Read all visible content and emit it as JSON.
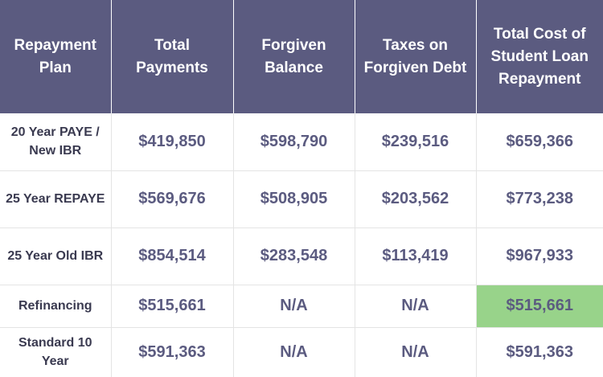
{
  "table": {
    "headers": [
      "Repayment Plan",
      "Total Payments",
      "Forgiven Balance",
      "Taxes on Forgiven Debt",
      "Total Cost of Student Loan Repayment"
    ],
    "rows": [
      {
        "plan": "20 Year PAYE / New IBR",
        "total_payments": "$419,850",
        "forgiven_balance": "$598,790",
        "taxes": "$239,516",
        "total_cost": "$659,366"
      },
      {
        "plan": "25 Year REPAYE",
        "total_payments": "$569,676",
        "forgiven_balance": "$508,905",
        "taxes": "$203,562",
        "total_cost": "$773,238"
      },
      {
        "plan": "25 Year Old IBR",
        "total_payments": "$854,514",
        "forgiven_balance": "$283,548",
        "taxes": "$113,419",
        "total_cost": "$967,933"
      },
      {
        "plan": "Refinancing",
        "total_payments": "$515,661",
        "forgiven_balance": "N/A",
        "taxes": "N/A",
        "total_cost": "$515,661"
      },
      {
        "plan": "Standard 10 Year",
        "total_payments": "$591,363",
        "forgiven_balance": "N/A",
        "taxes": "N/A",
        "total_cost": "$591,363"
      }
    ],
    "highlight_color": "#98d38a",
    "header_color": "#5b5b80"
  }
}
